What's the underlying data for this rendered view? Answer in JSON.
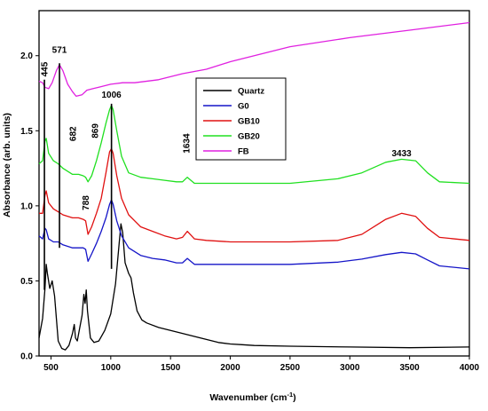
{
  "chart_data": {
    "type": "line",
    "xlabel": "Wavenumber (cm",
    "xlabel_sup": "-1",
    "xlabel_tail": ")",
    "ylabel": "Absorbance (arb. units)",
    "xlim": [
      400,
      4000
    ],
    "ylim": [
      0.0,
      2.3
    ],
    "x_ticks": [
      500,
      1000,
      1500,
      2000,
      2500,
      3000,
      3500,
      4000
    ],
    "y_ticks": [
      0.0,
      0.5,
      1.0,
      1.5,
      2.0
    ],
    "y_tick_labels": [
      "0.0",
      "0.5",
      "1.0",
      "1.5",
      "2.0"
    ],
    "legend_position": "upper-middle",
    "series": [
      {
        "name": "Quartz",
        "color": "#000000",
        "points": [
          [
            400,
            0.12
          ],
          [
            430,
            0.25
          ],
          [
            450,
            0.45
          ],
          [
            460,
            0.61
          ],
          [
            470,
            0.55
          ],
          [
            490,
            0.45
          ],
          [
            510,
            0.5
          ],
          [
            530,
            0.4
          ],
          [
            560,
            0.1
          ],
          [
            590,
            0.05
          ],
          [
            620,
            0.04
          ],
          [
            650,
            0.07
          ],
          [
            680,
            0.15
          ],
          [
            695,
            0.21
          ],
          [
            705,
            0.12
          ],
          [
            720,
            0.1
          ],
          [
            760,
            0.27
          ],
          [
            775,
            0.41
          ],
          [
            785,
            0.35
          ],
          [
            795,
            0.44
          ],
          [
            805,
            0.3
          ],
          [
            830,
            0.12
          ],
          [
            860,
            0.09
          ],
          [
            900,
            0.1
          ],
          [
            950,
            0.17
          ],
          [
            1000,
            0.28
          ],
          [
            1040,
            0.48
          ],
          [
            1070,
            0.75
          ],
          [
            1085,
            0.88
          ],
          [
            1100,
            0.82
          ],
          [
            1120,
            0.62
          ],
          [
            1150,
            0.55
          ],
          [
            1170,
            0.52
          ],
          [
            1190,
            0.42
          ],
          [
            1220,
            0.3
          ],
          [
            1260,
            0.24
          ],
          [
            1300,
            0.22
          ],
          [
            1400,
            0.19
          ],
          [
            1500,
            0.17
          ],
          [
            1600,
            0.15
          ],
          [
            1700,
            0.13
          ],
          [
            1800,
            0.11
          ],
          [
            1900,
            0.09
          ],
          [
            2000,
            0.08
          ],
          [
            2100,
            0.075
          ],
          [
            2200,
            0.07
          ],
          [
            2500,
            0.065
          ],
          [
            3000,
            0.06
          ],
          [
            3500,
            0.055
          ],
          [
            4000,
            0.06
          ]
        ]
      },
      {
        "name": "G0",
        "color": "#1515c8",
        "points": [
          [
            400,
            0.8
          ],
          [
            430,
            0.78
          ],
          [
            450,
            0.85
          ],
          [
            460,
            0.84
          ],
          [
            480,
            0.78
          ],
          [
            520,
            0.76
          ],
          [
            560,
            0.76
          ],
          [
            600,
            0.74
          ],
          [
            680,
            0.72
          ],
          [
            730,
            0.72
          ],
          [
            770,
            0.72
          ],
          [
            790,
            0.71
          ],
          [
            810,
            0.63
          ],
          [
            840,
            0.68
          ],
          [
            880,
            0.75
          ],
          [
            920,
            0.83
          ],
          [
            960,
            0.92
          ],
          [
            990,
            1.01
          ],
          [
            1006,
            1.04
          ],
          [
            1020,
            1.01
          ],
          [
            1050,
            0.9
          ],
          [
            1090,
            0.8
          ],
          [
            1150,
            0.72
          ],
          [
            1250,
            0.67
          ],
          [
            1350,
            0.65
          ],
          [
            1450,
            0.64
          ],
          [
            1550,
            0.62
          ],
          [
            1600,
            0.62
          ],
          [
            1640,
            0.65
          ],
          [
            1700,
            0.61
          ],
          [
            1800,
            0.61
          ],
          [
            2000,
            0.61
          ],
          [
            2500,
            0.61
          ],
          [
            2900,
            0.625
          ],
          [
            3100,
            0.645
          ],
          [
            3300,
            0.675
          ],
          [
            3433,
            0.69
          ],
          [
            3550,
            0.68
          ],
          [
            3650,
            0.64
          ],
          [
            3750,
            0.6
          ],
          [
            4000,
            0.58
          ]
        ]
      },
      {
        "name": "GB10",
        "color": "#e01010",
        "points": [
          [
            400,
            0.95
          ],
          [
            430,
            0.95
          ],
          [
            450,
            1.07
          ],
          [
            460,
            1.1
          ],
          [
            480,
            1.02
          ],
          [
            520,
            0.98
          ],
          [
            560,
            0.96
          ],
          [
            600,
            0.94
          ],
          [
            680,
            0.92
          ],
          [
            730,
            0.92
          ],
          [
            770,
            0.91
          ],
          [
            790,
            0.9
          ],
          [
            810,
            0.81
          ],
          [
            840,
            0.86
          ],
          [
            880,
            0.95
          ],
          [
            920,
            1.05
          ],
          [
            960,
            1.22
          ],
          [
            990,
            1.36
          ],
          [
            1006,
            1.38
          ],
          [
            1020,
            1.35
          ],
          [
            1050,
            1.2
          ],
          [
            1090,
            1.05
          ],
          [
            1150,
            0.94
          ],
          [
            1250,
            0.86
          ],
          [
            1350,
            0.83
          ],
          [
            1450,
            0.8
          ],
          [
            1550,
            0.78
          ],
          [
            1600,
            0.79
          ],
          [
            1640,
            0.83
          ],
          [
            1700,
            0.78
          ],
          [
            1800,
            0.77
          ],
          [
            2000,
            0.76
          ],
          [
            2500,
            0.76
          ],
          [
            2900,
            0.77
          ],
          [
            3100,
            0.81
          ],
          [
            3300,
            0.91
          ],
          [
            3433,
            0.95
          ],
          [
            3550,
            0.93
          ],
          [
            3650,
            0.85
          ],
          [
            3750,
            0.79
          ],
          [
            4000,
            0.77
          ]
        ]
      },
      {
        "name": "GB20",
        "color": "#20e020",
        "points": [
          [
            400,
            1.28
          ],
          [
            430,
            1.3
          ],
          [
            450,
            1.43
          ],
          [
            460,
            1.45
          ],
          [
            480,
            1.35
          ],
          [
            520,
            1.3
          ],
          [
            560,
            1.28
          ],
          [
            600,
            1.25
          ],
          [
            680,
            1.21
          ],
          [
            730,
            1.21
          ],
          [
            770,
            1.2
          ],
          [
            790,
            1.19
          ],
          [
            810,
            1.16
          ],
          [
            840,
            1.2
          ],
          [
            880,
            1.3
          ],
          [
            920,
            1.42
          ],
          [
            960,
            1.55
          ],
          [
            990,
            1.64
          ],
          [
            1006,
            1.67
          ],
          [
            1020,
            1.64
          ],
          [
            1050,
            1.5
          ],
          [
            1090,
            1.33
          ],
          [
            1150,
            1.22
          ],
          [
            1250,
            1.19
          ],
          [
            1350,
            1.18
          ],
          [
            1450,
            1.17
          ],
          [
            1550,
            1.16
          ],
          [
            1600,
            1.16
          ],
          [
            1640,
            1.19
          ],
          [
            1700,
            1.15
          ],
          [
            1800,
            1.15
          ],
          [
            2000,
            1.15
          ],
          [
            2500,
            1.15
          ],
          [
            2900,
            1.18
          ],
          [
            3100,
            1.22
          ],
          [
            3300,
            1.29
          ],
          [
            3433,
            1.31
          ],
          [
            3550,
            1.3
          ],
          [
            3650,
            1.22
          ],
          [
            3750,
            1.16
          ],
          [
            4000,
            1.15
          ]
        ]
      },
      {
        "name": "FB",
        "color": "#e020e0",
        "points": [
          [
            400,
            1.83
          ],
          [
            430,
            1.82
          ],
          [
            450,
            1.79
          ],
          [
            480,
            1.78
          ],
          [
            510,
            1.82
          ],
          [
            545,
            1.9
          ],
          [
            571,
            1.94
          ],
          [
            600,
            1.9
          ],
          [
            640,
            1.81
          ],
          [
            680,
            1.76
          ],
          [
            710,
            1.73
          ],
          [
            760,
            1.74
          ],
          [
            800,
            1.77
          ],
          [
            850,
            1.78
          ],
          [
            900,
            1.79
          ],
          [
            1000,
            1.81
          ],
          [
            1100,
            1.82
          ],
          [
            1200,
            1.82
          ],
          [
            1400,
            1.84
          ],
          [
            1600,
            1.88
          ],
          [
            1800,
            1.91
          ],
          [
            2000,
            1.96
          ],
          [
            2500,
            2.06
          ],
          [
            3000,
            2.12
          ],
          [
            3500,
            2.17
          ],
          [
            4000,
            2.22
          ]
        ]
      }
    ],
    "annotations": [
      {
        "text": "445",
        "x": 445,
        "y": 1.86,
        "rotate": -90
      },
      {
        "text": "571",
        "x": 571,
        "y": 2.02,
        "rotate": 0
      },
      {
        "text": "682",
        "x": 682,
        "y": 1.43,
        "rotate": -90
      },
      {
        "text": "869",
        "x": 869,
        "y": 1.45,
        "rotate": -90
      },
      {
        "text": "1006",
        "x": 1006,
        "y": 1.72,
        "rotate": 0
      },
      {
        "text": "1634",
        "x": 1634,
        "y": 1.35,
        "rotate": -90
      },
      {
        "text": "788",
        "x": 788,
        "y": 0.97,
        "rotate": -90
      },
      {
        "text": "3433",
        "x": 3433,
        "y": 1.33,
        "rotate": 0
      }
    ],
    "vertical_markers": [
      {
        "x": 445,
        "y_from": 0.44,
        "y_to": 1.84
      },
      {
        "x": 571,
        "y_from": 0.72,
        "y_to": 1.95
      },
      {
        "x": 1006,
        "y_from": 0.58,
        "y_to": 1.68
      }
    ]
  }
}
